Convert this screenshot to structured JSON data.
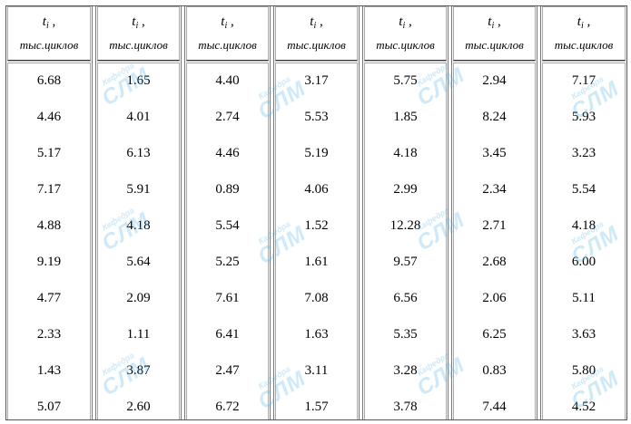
{
  "table": {
    "header": {
      "symbol": "t",
      "subscript": "i",
      "unit": "тыс.циклов"
    },
    "columns": [
      [
        "6.68",
        "4.46",
        "5.17",
        "7.17",
        "4.88",
        "9.19",
        "4.77",
        "2.33",
        "1.43",
        "5.07"
      ],
      [
        "1.65",
        "4.01",
        "6.13",
        "5.91",
        "4.18",
        "5.64",
        "2.09",
        "1.11",
        "3.87",
        "2.60"
      ],
      [
        "4.40",
        "2.74",
        "4.46",
        "0.89",
        "5.54",
        "5.25",
        "7.61",
        "6.41",
        "2.47",
        "6.72"
      ],
      [
        "3.17",
        "5.53",
        "5.19",
        "4.06",
        "1.52",
        "1.61",
        "7.08",
        "1.63",
        "3.11",
        "1.57"
      ],
      [
        "5.75",
        "1.85",
        "4.18",
        "2.99",
        "12.28",
        "9.57",
        "6.56",
        "5.35",
        "3.28",
        "3.78"
      ],
      [
        "2.94",
        "8.24",
        "3.45",
        "2.34",
        "2.71",
        "2.68",
        "2.06",
        "6.25",
        "0.83",
        "7.44"
      ],
      [
        "7.17",
        "5.93",
        "3.23",
        "5.54",
        "4.18",
        "6.00",
        "5.11",
        "3.63",
        "5.80",
        "4.52"
      ]
    ]
  },
  "watermark": {
    "small": "Кафедра",
    "big": "СЛМ"
  }
}
